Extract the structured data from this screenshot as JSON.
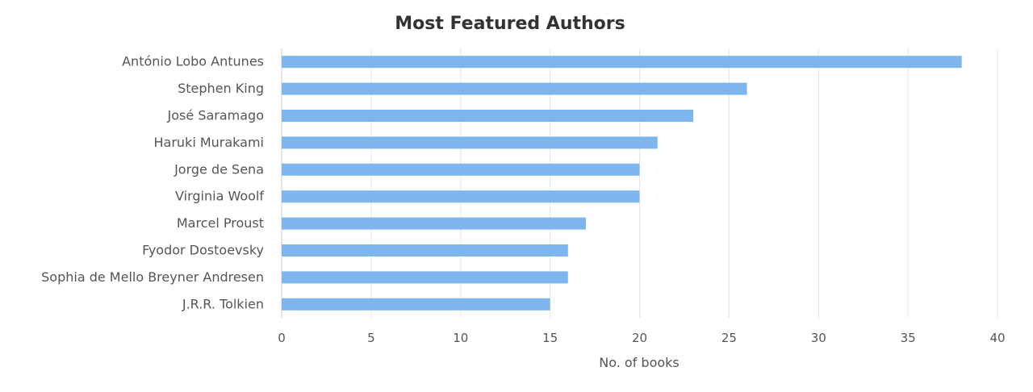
{
  "chart_data": {
    "type": "bar",
    "orientation": "horizontal",
    "title": "Most Featured Authors",
    "xlabel": "No. of books",
    "ylabel": "",
    "xlim": [
      0,
      40
    ],
    "xticks": [
      "0",
      "5",
      "10",
      "15",
      "20",
      "25",
      "30",
      "35",
      "40"
    ],
    "grid": true,
    "categories": [
      "António Lobo Antunes",
      "Stephen King",
      "José Saramago",
      "Haruki Murakami",
      "Jorge de Sena",
      "Virginia Woolf",
      "Marcel Proust",
      "Fyodor Dostoevsky",
      "Sophia de Mello Breyner Andresen",
      "J.R.R. Tolkien"
    ],
    "values": [
      38,
      26,
      23,
      21,
      20,
      20,
      17,
      16,
      16,
      15
    ]
  },
  "colors": {
    "bar": "#7eb5ec",
    "grid": "#e6e6e6",
    "axis": "#cccccc"
  }
}
